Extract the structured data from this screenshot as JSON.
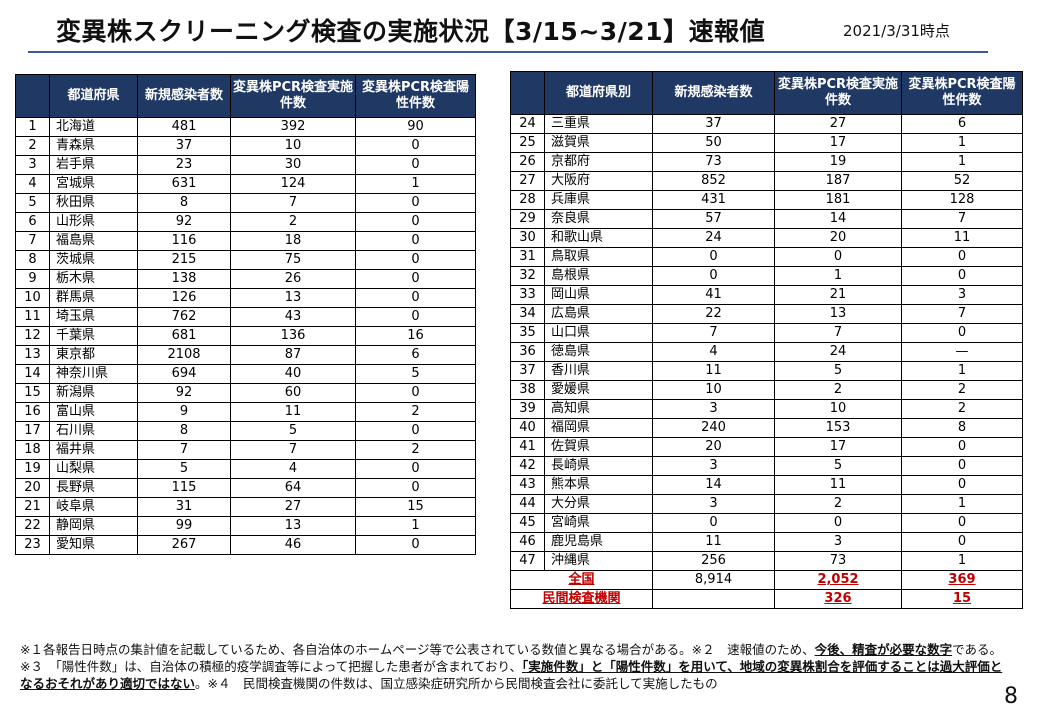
{
  "title": "変異株スクリーニング検査の実施状況【3/15~3/21】速報値",
  "date": "2021/3/31時点",
  "left_headers": [
    "",
    "都道府県",
    "新規感染者数",
    "変異株PCR検査実施件数",
    "変異株PCR検査陽性件数"
  ],
  "right_headers": [
    "",
    "都道府県別",
    "新規感染者数",
    "変異株PCR検査実施件数",
    "変異株PCR検査陽性件数"
  ],
  "left_rows": [
    [
      "1",
      "北海道",
      "481",
      "392",
      "90"
    ],
    [
      "2",
      "青森県",
      "37",
      "10",
      "0"
    ],
    [
      "3",
      "岩手県",
      "23",
      "30",
      "0"
    ],
    [
      "4",
      "宮城県",
      "631",
      "124",
      "1"
    ],
    [
      "5",
      "秋田県",
      "8",
      "7",
      "0"
    ],
    [
      "6",
      "山形県",
      "92",
      "2",
      "0"
    ],
    [
      "7",
      "福島県",
      "116",
      "18",
      "0"
    ],
    [
      "8",
      "茨城県",
      "215",
      "75",
      "0"
    ],
    [
      "9",
      "栃木県",
      "138",
      "26",
      "0"
    ],
    [
      "10",
      "群馬県",
      "126",
      "13",
      "0"
    ],
    [
      "11",
      "埼玉県",
      "762",
      "43",
      "0"
    ],
    [
      "12",
      "千葉県",
      "681",
      "136",
      "16"
    ],
    [
      "13",
      "東京都",
      "2108",
      "87",
      "6"
    ],
    [
      "14",
      "神奈川県",
      "694",
      "40",
      "5"
    ],
    [
      "15",
      "新潟県",
      "92",
      "60",
      "0"
    ],
    [
      "16",
      "富山県",
      "9",
      "11",
      "2"
    ],
    [
      "17",
      "石川県",
      "8",
      "5",
      "0"
    ],
    [
      "18",
      "福井県",
      "7",
      "7",
      "2"
    ],
    [
      "19",
      "山梨県",
      "5",
      "4",
      "0"
    ],
    [
      "20",
      "長野県",
      "115",
      "64",
      "0"
    ],
    [
      "21",
      "岐阜県",
      "31",
      "27",
      "15"
    ],
    [
      "22",
      "静岡県",
      "99",
      "13",
      "1"
    ],
    [
      "23",
      "愛知県",
      "267",
      "46",
      "0"
    ]
  ],
  "right_rows": [
    [
      "24",
      "三重県",
      "37",
      "27",
      "6"
    ],
    [
      "25",
      "滋賀県",
      "50",
      "17",
      "1"
    ],
    [
      "26",
      "京都府",
      "73",
      "19",
      "1"
    ],
    [
      "27",
      "大阪府",
      "852",
      "187",
      "52"
    ],
    [
      "28",
      "兵庫県",
      "431",
      "181",
      "128"
    ],
    [
      "29",
      "奈良県",
      "57",
      "14",
      "7"
    ],
    [
      "30",
      "和歌山県",
      "24",
      "20",
      "11"
    ],
    [
      "31",
      "鳥取県",
      "0",
      "0",
      "0"
    ],
    [
      "32",
      "島根県",
      "0",
      "1",
      "0"
    ],
    [
      "33",
      "岡山県",
      "41",
      "21",
      "3"
    ],
    [
      "34",
      "広島県",
      "22",
      "13",
      "7"
    ],
    [
      "35",
      "山口県",
      "7",
      "7",
      "0"
    ],
    [
      "36",
      "徳島県",
      "4",
      "24",
      "—"
    ],
    [
      "37",
      "香川県",
      "11",
      "5",
      "1"
    ],
    [
      "38",
      "愛媛県",
      "10",
      "2",
      "2"
    ],
    [
      "39",
      "高知県",
      "3",
      "10",
      "2"
    ],
    [
      "40",
      "福岡県",
      "240",
      "153",
      "8"
    ],
    [
      "41",
      "佐賀県",
      "20",
      "17",
      "0"
    ],
    [
      "42",
      "長崎県",
      "3",
      "5",
      "0"
    ],
    [
      "43",
      "熊本県",
      "14",
      "11",
      "0"
    ],
    [
      "44",
      "大分県",
      "3",
      "2",
      "1"
    ],
    [
      "45",
      "宮崎県",
      "0",
      "0",
      "0"
    ],
    [
      "46",
      "鹿児島県",
      "11",
      "3",
      "0"
    ],
    [
      "47",
      "沖縄県",
      "256",
      "73",
      "1"
    ]
  ],
  "total_row": [
    "全国",
    "8,914",
    "2,052",
    "369"
  ],
  "private_row": [
    "民間検査機関",
    "",
    "326",
    "15"
  ],
  "footnotes": [
    "※１各報告日時点の集計値を記載しているため、各自治体のホームページ等で公表されている数値と異なる場合がある。※２　速報値のため、",
    "今後、精査が必要な数字",
    "である。※３　「陽性件数」は、自治体の積極的疫学調査等によって把握した患者が含まれており、",
    "「実施件数」と「陽性件数」を用いて、地域の変異株割合を評価することは過大評価となるおそれがあり適切ではない",
    "。※４　民間検査機関の件数は、国立感染症研究所から民間検査会社に委託して実施したもの"
  ],
  "page_number": "8",
  "colors": {
    "header_bg": "#1f3864",
    "accent_red": "#c00000",
    "title_rule": "#3b5a9a"
  }
}
